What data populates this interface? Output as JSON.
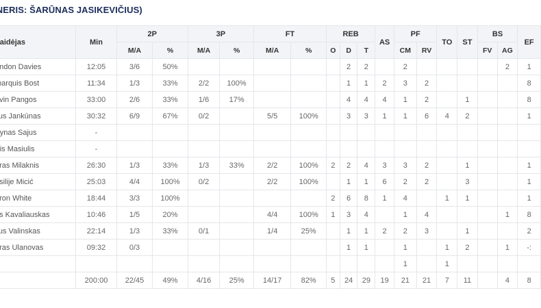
{
  "title": "ENERIS: ŠARŪNAS JASIKEVIČIUS)",
  "headers": {
    "player": "Žaidėjas",
    "min": "Min",
    "p2": "2P",
    "p3": "3P",
    "ft": "FT",
    "reb": "REB",
    "as": "AS",
    "pf": "PF",
    "to": "TO",
    "st": "ST",
    "bs": "BS",
    "ef": "EF",
    "sub": [
      "M/A",
      "%",
      "M/A",
      "%",
      "M/A",
      "%",
      "O",
      "D",
      "T",
      "CM",
      "RV",
      "FV",
      "AG"
    ]
  },
  "rows": [
    [
      "andon Davies",
      "12:05",
      "3/6",
      "50%",
      "",
      "",
      "",
      "",
      "",
      "2",
      "2",
      "",
      "2",
      "",
      "",
      "",
      "",
      "2",
      "1"
    ],
    [
      "marquis Bost",
      "11:34",
      "1/3",
      "33%",
      "2/2",
      "100%",
      "",
      "",
      "",
      "1",
      "1",
      "2",
      "3",
      "2",
      "",
      "",
      "",
      "",
      "8"
    ],
    [
      "evin Pangos",
      "33:00",
      "2/6",
      "33%",
      "1/6",
      "17%",
      "",
      "",
      "",
      "4",
      "4",
      "4",
      "1",
      "2",
      "",
      "1",
      "",
      "",
      "8"
    ],
    [
      "lius Jankūnas",
      "30:32",
      "6/9",
      "67%",
      "0/2",
      "",
      "5/5",
      "100%",
      "",
      "3",
      "3",
      "1",
      "1",
      "6",
      "4",
      "2",
      "",
      "",
      "1"
    ],
    [
      "rtynas Sajus",
      "-",
      "",
      "",
      "",
      "",
      "",
      "",
      "",
      "",
      "",
      "",
      "",
      "",
      "",
      "",
      "",
      "",
      ""
    ],
    [
      "rtis Masiulis",
      "-",
      "",
      "",
      "",
      "",
      "",
      "",
      "",
      "",
      "",
      "",
      "",
      "",
      "",
      "",
      "",
      "",
      ""
    ],
    [
      "ūras Milaknis",
      "26:30",
      "1/3",
      "33%",
      "1/3",
      "33%",
      "2/2",
      "100%",
      "2",
      "2",
      "4",
      "3",
      "3",
      "2",
      "",
      "1",
      "",
      "",
      "1"
    ],
    [
      "asilije Micić",
      "25:03",
      "4/4",
      "100%",
      "0/2",
      "",
      "2/2",
      "100%",
      "",
      "1",
      "1",
      "6",
      "2",
      "2",
      "",
      "3",
      "",
      "",
      "1"
    ],
    [
      "aron White",
      "18:44",
      "3/3",
      "100%",
      "",
      "",
      "",
      "",
      "2",
      "6",
      "8",
      "1",
      "4",
      "",
      "1",
      "1",
      "",
      "",
      "1"
    ],
    [
      "as Kavaliauskas",
      "10:46",
      "1/5",
      "20%",
      "",
      "",
      "4/4",
      "100%",
      "1",
      "3",
      "4",
      "",
      "1",
      "4",
      "",
      "",
      "",
      "1",
      "8"
    ],
    [
      "lius Valinskas",
      "22:14",
      "1/3",
      "33%",
      "0/1",
      "",
      "1/4",
      "25%",
      "",
      "1",
      "1",
      "2",
      "2",
      "3",
      "",
      "1",
      "",
      "",
      "2"
    ],
    [
      "aras Ulanovas",
      "09:32",
      "0/3",
      "",
      "",
      "",
      "",
      "",
      "",
      "1",
      "1",
      "",
      "1",
      "",
      "1",
      "2",
      "",
      "1",
      "-:"
    ],
    [
      "",
      "",
      "",
      "",
      "",
      "",
      "",
      "",
      "",
      "",
      "",
      "",
      "1",
      "",
      "1",
      "",
      "",
      "",
      ""
    ],
    [
      "",
      "200:00",
      "22/45",
      "49%",
      "4/16",
      "25%",
      "14/17",
      "82%",
      "5",
      "24",
      "29",
      "19",
      "21",
      "21",
      "7",
      "11",
      "",
      "4",
      "8"
    ]
  ]
}
